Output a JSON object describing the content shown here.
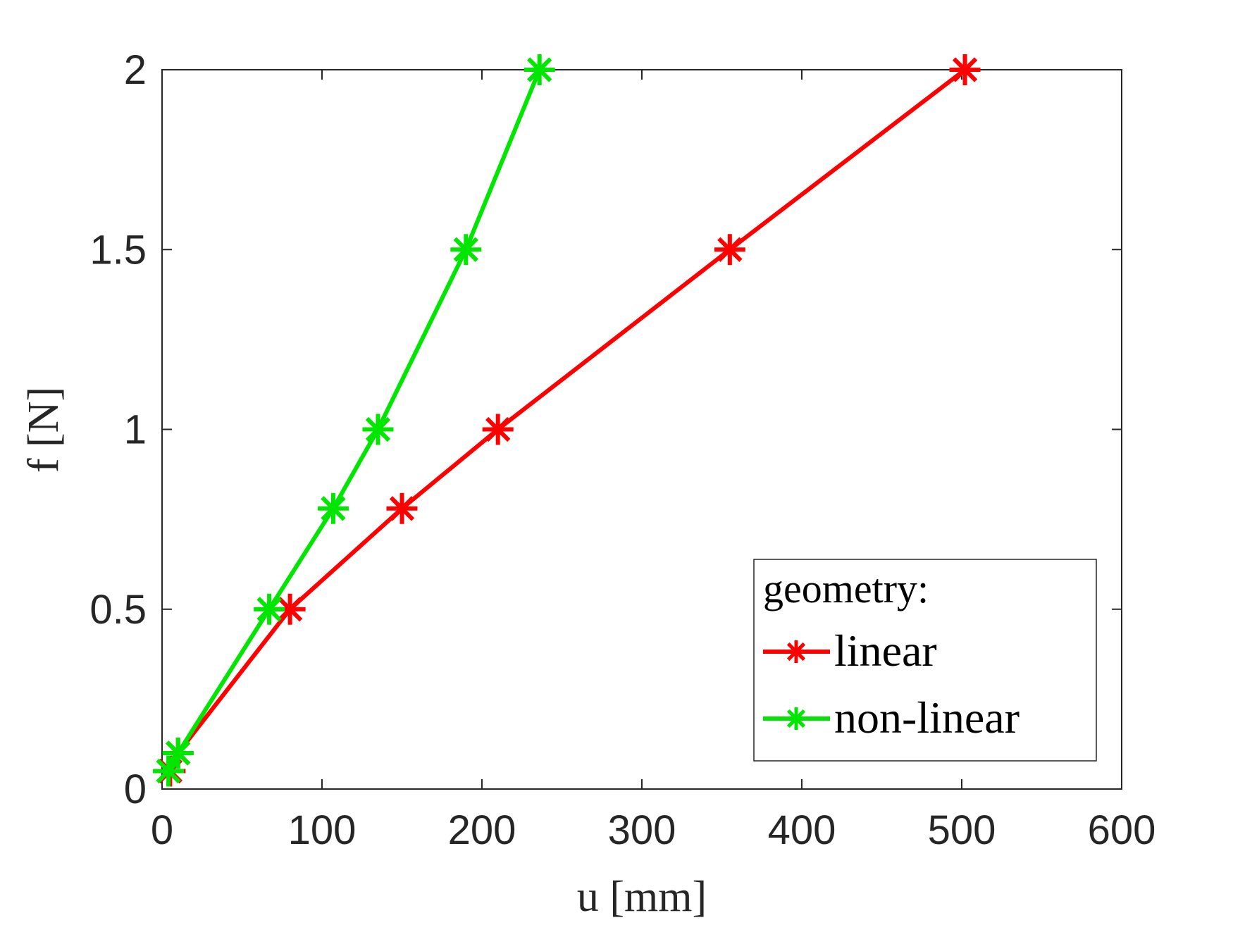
{
  "chart_data": {
    "type": "line",
    "xlabel": "u [mm]",
    "ylabel": "f [N]",
    "xlim": [
      0,
      600
    ],
    "ylim": [
      0,
      2
    ],
    "x_ticks": [
      0,
      100,
      200,
      300,
      400,
      500,
      600
    ],
    "x_tick_labels": [
      "0",
      "100",
      "200",
      "300",
      "400",
      "500",
      "600"
    ],
    "y_ticks": [
      0,
      0.5,
      1,
      1.5,
      2
    ],
    "y_tick_labels": [
      "0",
      "0.5",
      "1",
      "1.5",
      "2"
    ],
    "grid": false,
    "marker": "asterisk",
    "legend": {
      "title": "geometry:",
      "placement": "bottom-right"
    },
    "series": [
      {
        "name": "linear",
        "color": "#ff0000",
        "x": [
          5,
          10,
          80,
          150,
          210,
          355,
          502
        ],
        "y": [
          0.05,
          0.1,
          0.5,
          0.78,
          1.0,
          1.5,
          2.0
        ]
      },
      {
        "name": "non-linear",
        "color": "#00e600",
        "x": [
          4,
          10,
          67,
          107,
          135,
          190,
          236
        ],
        "y": [
          0.05,
          0.1,
          0.5,
          0.78,
          1.0,
          1.5,
          2.0
        ]
      }
    ]
  }
}
